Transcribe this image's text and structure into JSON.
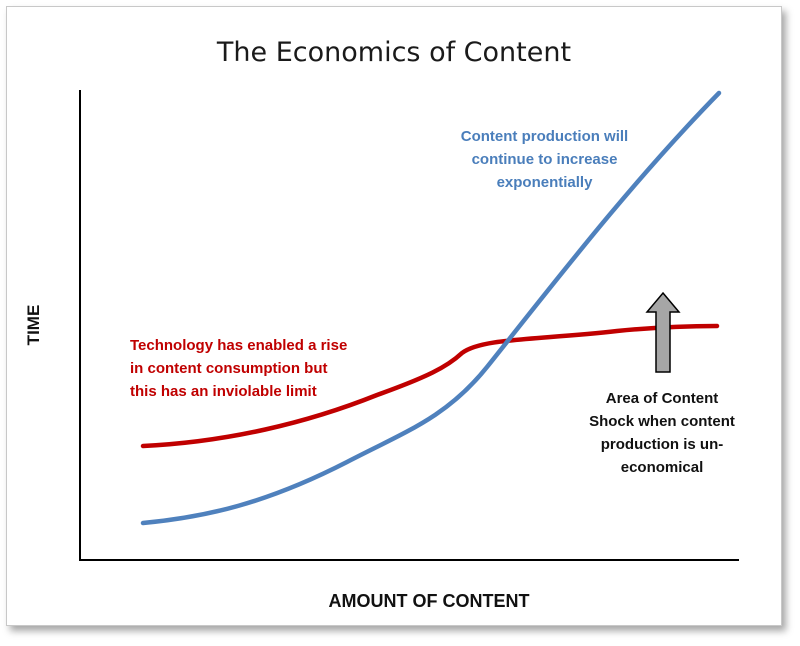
{
  "title": "The Economics of Content",
  "y_axis_label": "TIME",
  "x_axis_label": "AMOUNT OF CONTENT",
  "colors": {
    "production_line": "#4f81bd",
    "consumption_line": "#c00000",
    "arrow_fill": "#a6a6a6",
    "production_text": "#4a7ebb",
    "consumption_text": "#c00000"
  },
  "annotations": {
    "production": {
      "lines": [
        "Content production will",
        "continue to increase",
        "exponentially"
      ]
    },
    "consumption": {
      "lines": [
        "Technology has enabled a rise",
        "in content consumption but",
        "this has an inviolable limit"
      ]
    },
    "content_shock": {
      "lines": [
        "Area of Content",
        "Shock when content",
        "production is un-",
        "economical"
      ]
    }
  },
  "arrow_icon": "up-arrow-icon"
}
